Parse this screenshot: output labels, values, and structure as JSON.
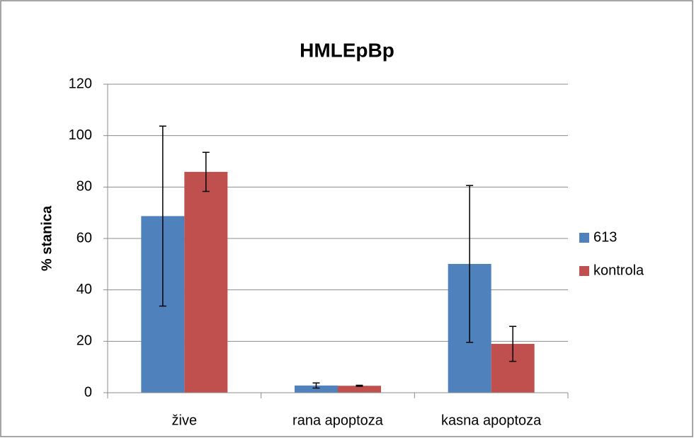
{
  "chart_data": {
    "type": "bar",
    "title": "HMLEpBp",
    "y_label": "% stanica",
    "categories": [
      "žive",
      "rana apoptoza",
      "kasna apoptoza"
    ],
    "series": [
      {
        "name": "613",
        "color": "#4f81bd",
        "values": [
          68.7,
          2.8,
          50.1
        ],
        "errors": [
          35,
          1,
          30.5
        ]
      },
      {
        "name": "kontrola",
        "color": "#c0504d",
        "values": [
          85.9,
          2.7,
          19
        ],
        "errors": [
          7.6,
          0.2,
          6.8
        ]
      }
    ],
    "ylim": [
      0,
      120
    ],
    "yticks": [
      0,
      20,
      40,
      60,
      80,
      100,
      120
    ],
    "grid": true,
    "legend": "right"
  }
}
